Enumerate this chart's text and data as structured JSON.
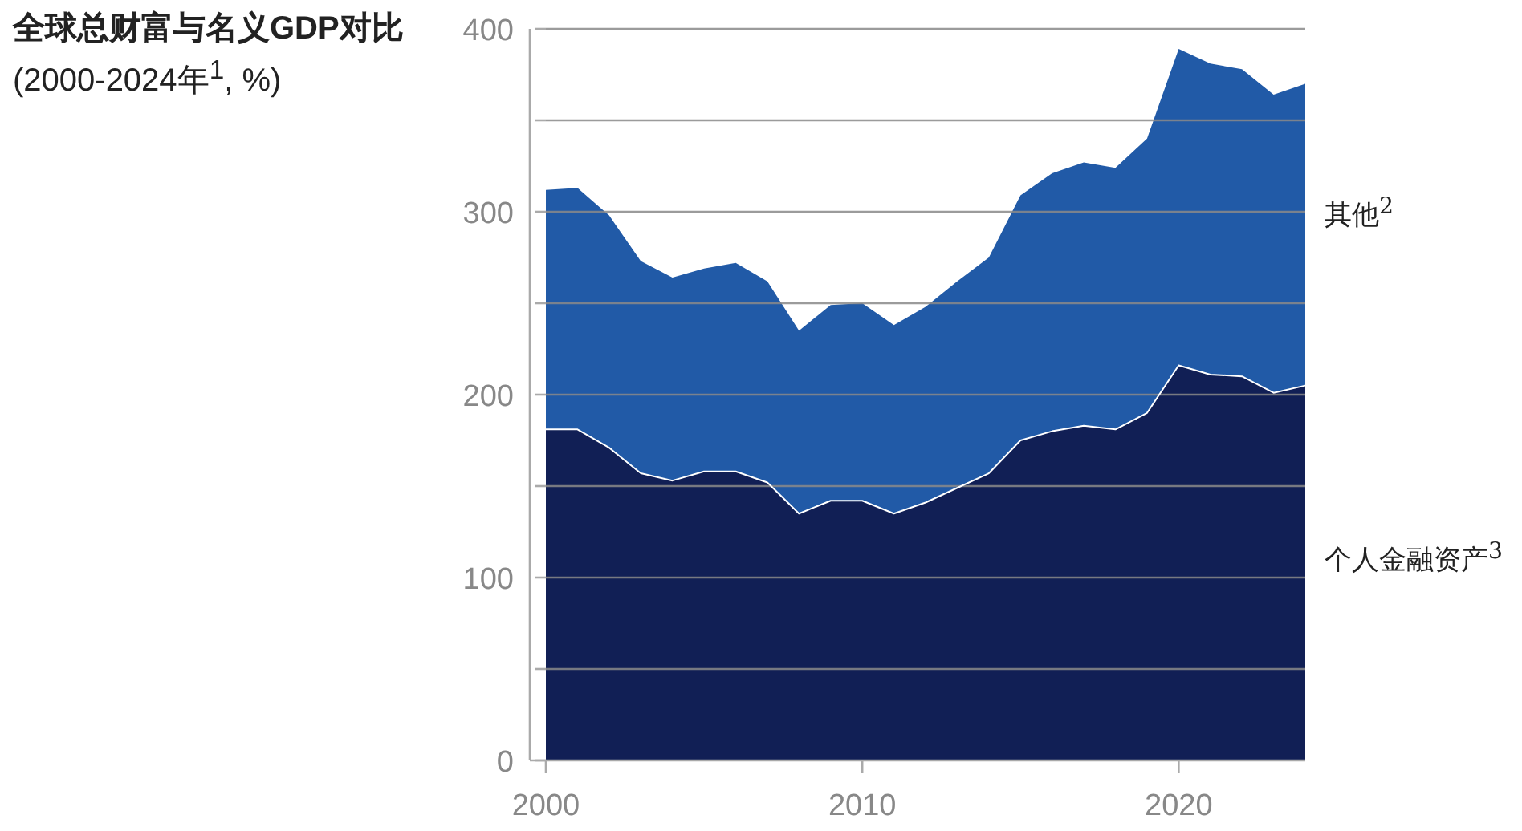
{
  "chart_data": {
    "type": "area",
    "stacked": true,
    "title": "**全球总财富与名义GDP对比** (2000-2024年$^{1}$, %)",
    "x": [
      2000,
      2001,
      2002,
      2003,
      2004,
      2005,
      2006,
      2007,
      2008,
      2009,
      2010,
      2011,
      2012,
      2013,
      2014,
      2015,
      2016,
      2017,
      2018,
      2019,
      2020,
      2021,
      2022,
      2023,
      2024
    ],
    "series": [
      {
        "name": "个人金融资产$^{3}$",
        "color": "#111f55",
        "values": [
          181,
          181,
          171,
          157,
          153,
          158,
          158,
          152,
          135,
          142,
          142,
          135,
          141,
          149,
          157,
          175,
          180,
          183,
          181,
          190,
          216,
          211,
          210,
          201,
          205
        ]
      },
      {
        "name": "其他$^{2}$",
        "color": "#215aa7",
        "values": [
          131,
          132,
          127,
          116,
          111,
          111,
          114,
          110,
          100,
          107,
          108,
          103,
          107,
          113,
          118,
          134,
          141,
          144,
          143,
          150,
          173,
          170,
          168,
          163,
          165
        ]
      }
    ],
    "xlim": [
      2000,
      2024
    ],
    "xticks": [
      2000,
      2010,
      2020
    ],
    "ylim": [
      0,
      400
    ],
    "yticks": [
      0,
      {
        "value": 50,
        "label": null
      },
      100,
      {
        "value": 150,
        "label": null
      },
      200,
      {
        "value": 250,
        "label": null
      },
      300,
      {
        "value": 350,
        "label": null
      },
      400
    ],
    "grid": "y"
  }
}
